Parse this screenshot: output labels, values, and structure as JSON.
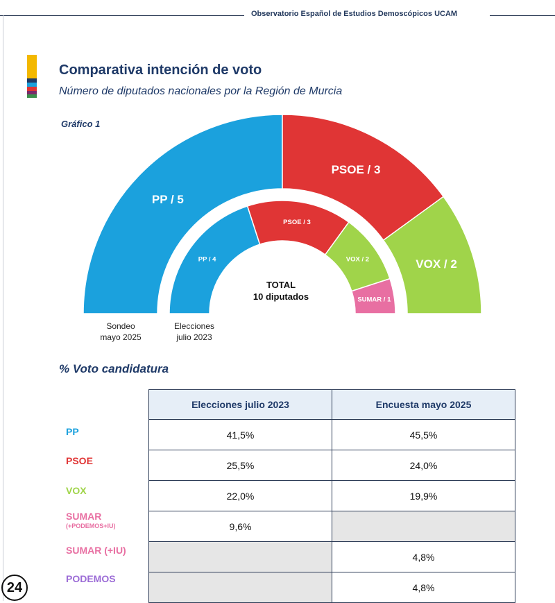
{
  "header": {
    "title": "Observatorio Español de Estudios Demoscópicos",
    "brand": "UCAM"
  },
  "title": "Comparativa intención de voto",
  "subtitle": "Número de diputados nacionales por la Región de Murcia",
  "graph_label": "Gráfico 1",
  "colors": {
    "PP": "#1ba1dd",
    "PSOE": "#e03535",
    "VOX": "#a0d44a",
    "SUMAR": "#e86fa2",
    "PODEMOS": "#9b6bd6",
    "navy": "#1f3a68"
  },
  "chart_data": {
    "type": "pie",
    "style": "nested-semicircle",
    "total_label": "TOTAL",
    "total_value": "10 diputados",
    "rings": [
      {
        "name": "Sondeo mayo 2025",
        "caption_line1": "Sondeo",
        "caption_line2": "mayo 2025",
        "slices": [
          {
            "party": "PP",
            "seats": 5,
            "label": "PP  /  5"
          },
          {
            "party": "PSOE",
            "seats": 3,
            "label": "PSOE  /  3"
          },
          {
            "party": "VOX",
            "seats": 2,
            "label": "VOX  /  2"
          }
        ]
      },
      {
        "name": "Elecciones julio 2023",
        "caption_line1": "Elecciones",
        "caption_line2": "julio 2023",
        "slices": [
          {
            "party": "PP",
            "seats": 4,
            "label": "PP  /  4"
          },
          {
            "party": "PSOE",
            "seats": 3,
            "label": "PSOE / 3"
          },
          {
            "party": "VOX",
            "seats": 2,
            "label": "VOX / 2"
          },
          {
            "party": "SUMAR",
            "seats": 1,
            "label": "SUMAR / 1"
          }
        ]
      }
    ]
  },
  "vote_section": {
    "title": "% Voto candidatura",
    "columns": [
      "Elecciones julio 2023",
      "Encuesta mayo 2025"
    ],
    "rows": [
      {
        "party": "PP",
        "sub": "",
        "v2023": "41,5%",
        "v2025": "45,5%"
      },
      {
        "party": "PSOE",
        "sub": "",
        "v2023": "25,5%",
        "v2025": "24,0%"
      },
      {
        "party": "VOX",
        "sub": "",
        "v2023": "22,0%",
        "v2025": "19,9%"
      },
      {
        "party": "SUMAR",
        "sub": "(+PODEMOS+IU)",
        "v2023": "9,6%",
        "v2025": ""
      },
      {
        "party": "SUMAR (+IU)",
        "sub": "",
        "v2023": "",
        "v2025": "4,8%"
      },
      {
        "party": "PODEMOS",
        "sub": "",
        "v2023": "",
        "v2025": "4,8%"
      }
    ]
  },
  "logo": "24"
}
